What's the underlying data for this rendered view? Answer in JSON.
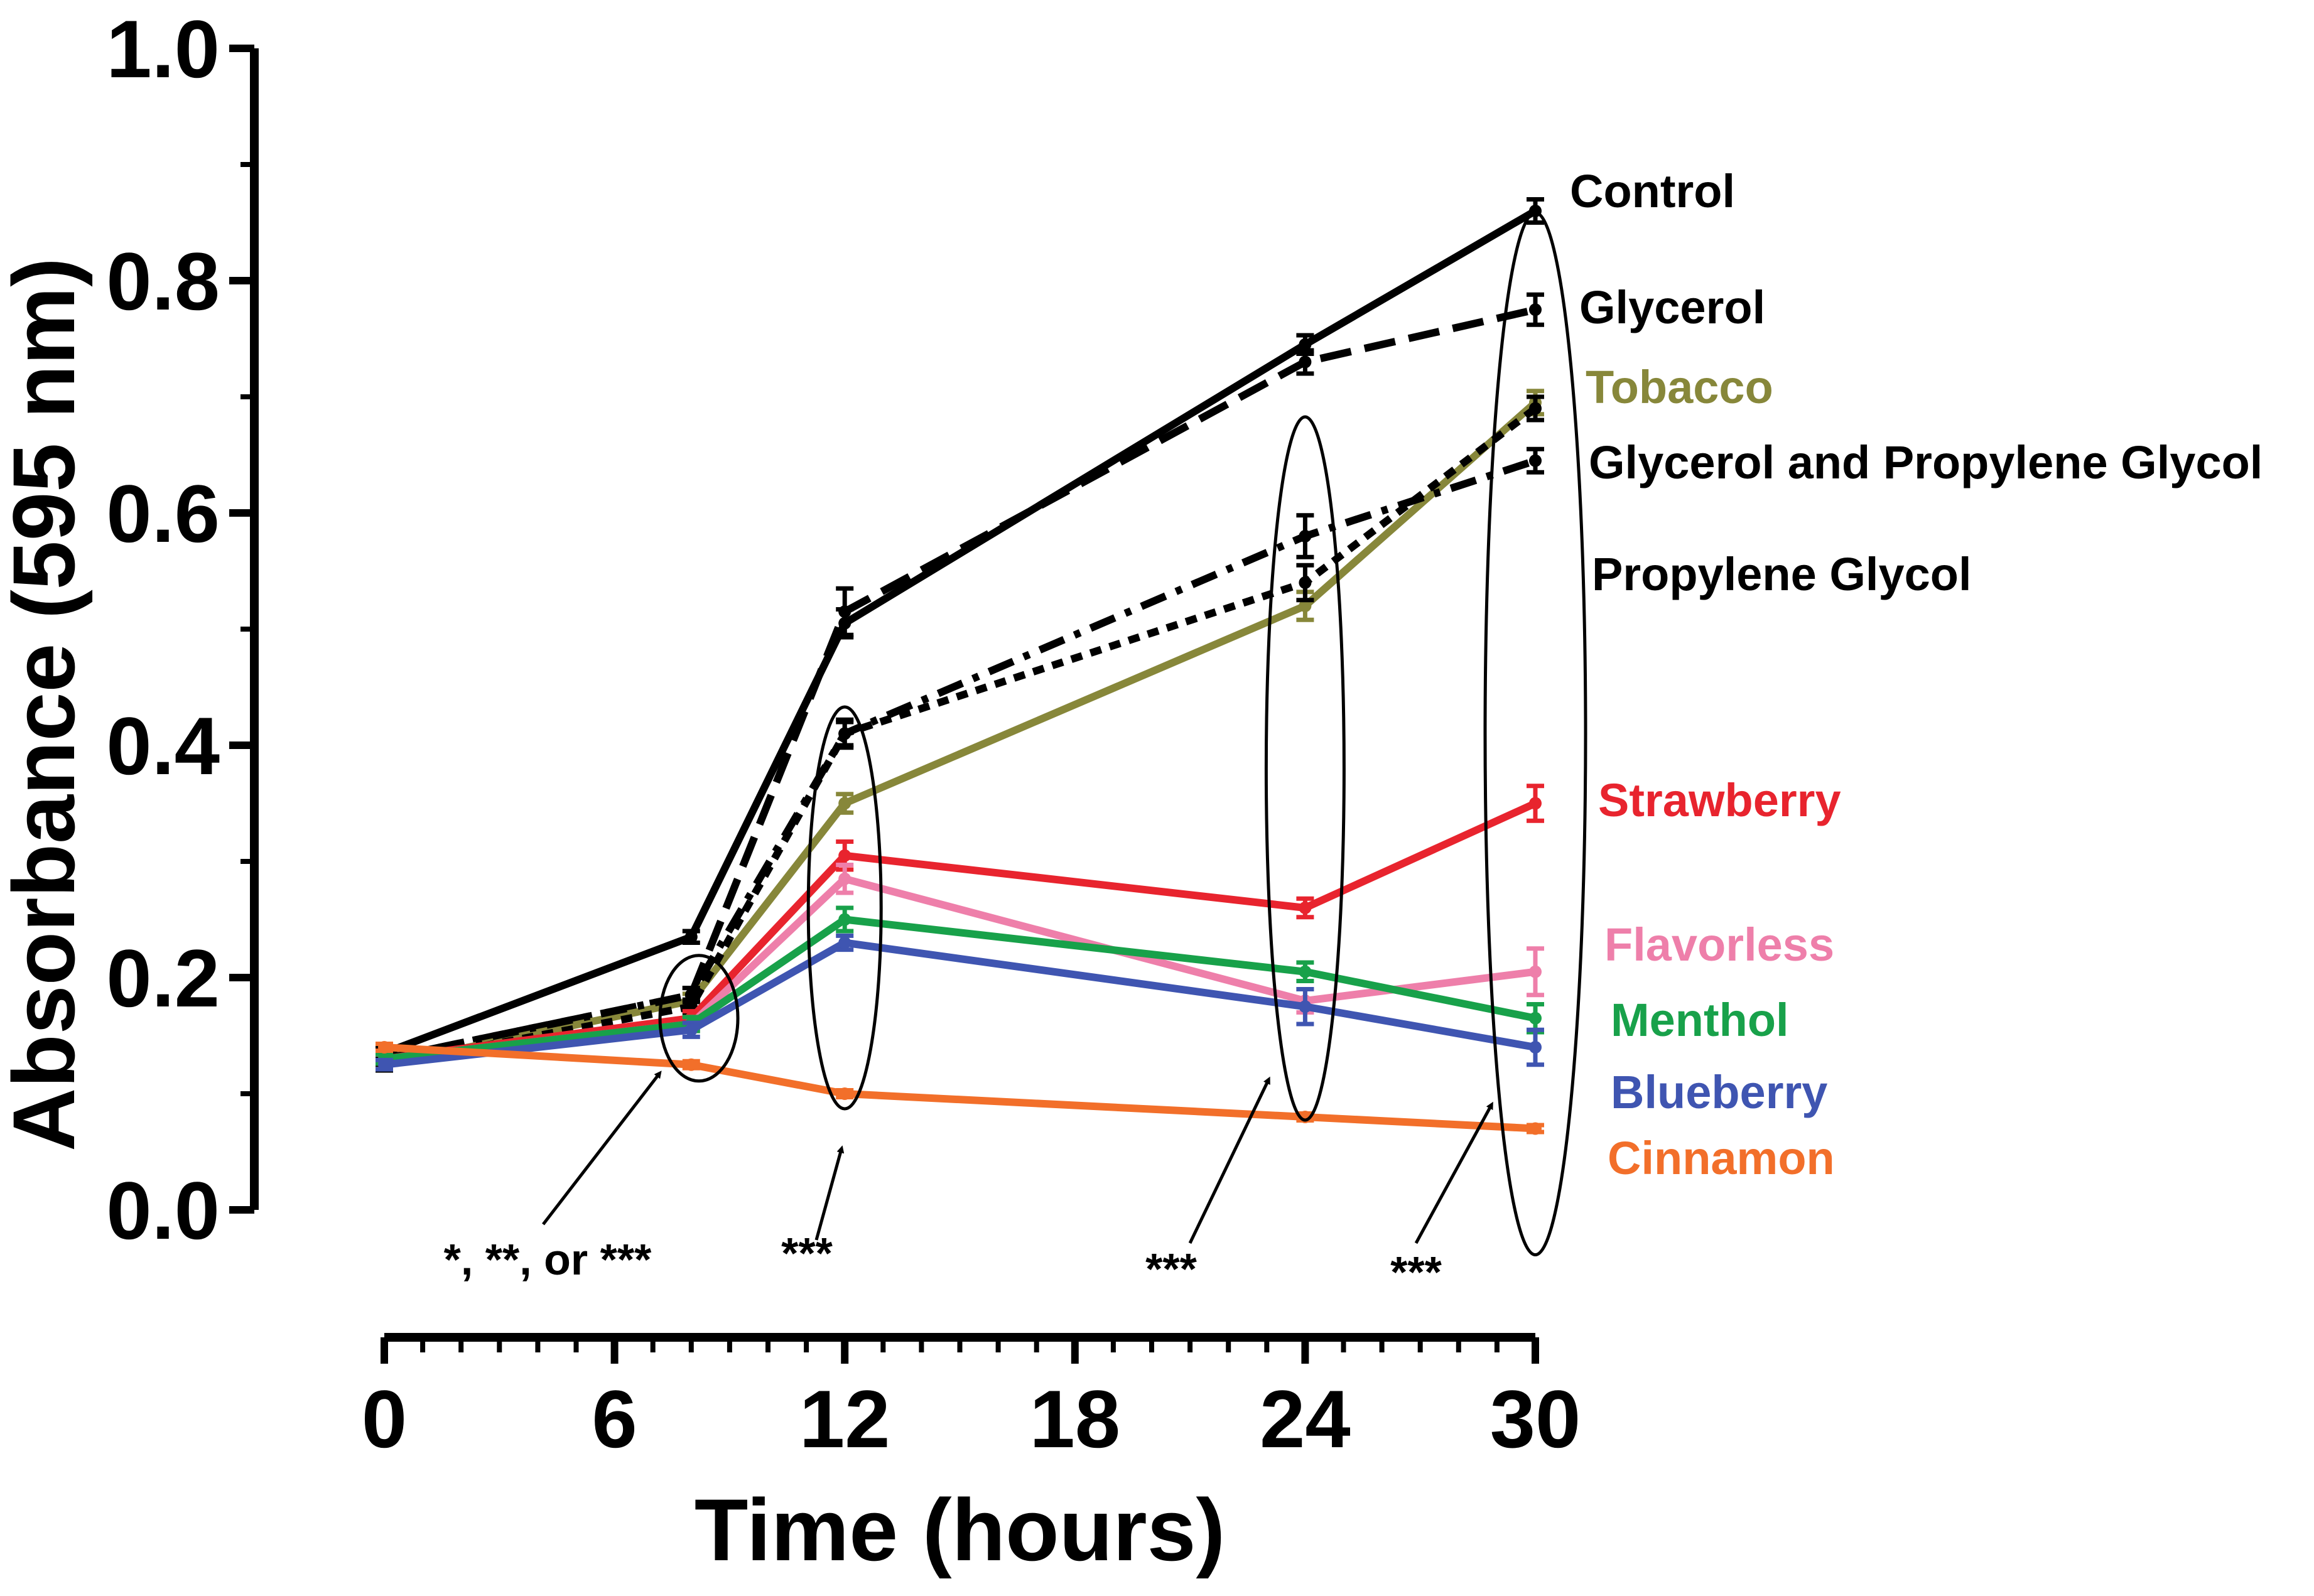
{
  "chart_data": {
    "type": "line",
    "xlabel": "Time (hours)",
    "ylabel": "Absorbance (595 nm)",
    "xlim": [
      0,
      30
    ],
    "ylim": [
      0,
      1.0
    ],
    "x_ticks": [
      "0",
      "6",
      "12",
      "18",
      "24",
      "30"
    ],
    "y_ticks": [
      "0.0",
      "0.2",
      "0.4",
      "0.6",
      "0.8",
      "1.0"
    ],
    "grid": false,
    "legend": "right-side inline labels",
    "x": [
      0,
      8,
      12,
      24,
      30
    ],
    "series": [
      {
        "name": "Control",
        "color": "#000000",
        "style": "solid",
        "values": [
          0.135,
          0.235,
          0.505,
          0.745,
          0.86
        ],
        "err": [
          0.005,
          0.005,
          0.012,
          0.008,
          0.01
        ]
      },
      {
        "name": "Glycerol",
        "color": "#000000",
        "style": "dashed",
        "values": [
          0.13,
          0.185,
          0.515,
          0.73,
          0.775
        ],
        "err": [
          0.005,
          0.006,
          0.02,
          0.01,
          0.013
        ]
      },
      {
        "name": "Tobacco",
        "color": "#87873a",
        "style": "solid",
        "values": [
          0.125,
          0.18,
          0.35,
          0.52,
          0.695
        ],
        "err": [
          0.005,
          0.006,
          0.008,
          0.012,
          0.01
        ]
      },
      {
        "name": "Glycerol and Propylene Glycol",
        "color": "#000000",
        "style": "dashdot",
        "values": [
          0.13,
          0.185,
          0.41,
          0.58,
          0.645
        ],
        "err": [
          0.005,
          0.006,
          0.01,
          0.018,
          0.01
        ]
      },
      {
        "name": "Propylene Glycol",
        "color": "#000000",
        "style": "dotted",
        "values": [
          0.125,
          0.175,
          0.41,
          0.54,
          0.69
        ],
        "err": [
          0.005,
          0.006,
          0.012,
          0.015,
          0.01
        ]
      },
      {
        "name": "Strawberry",
        "color": "#e8242e",
        "style": "solid",
        "values": [
          0.13,
          0.165,
          0.305,
          0.26,
          0.35
        ],
        "err": [
          0.004,
          0.006,
          0.012,
          0.008,
          0.015
        ]
      },
      {
        "name": "Flavorless",
        "color": "#ee7faa",
        "style": "solid",
        "values": [
          0.13,
          0.16,
          0.285,
          0.18,
          0.205
        ],
        "err": [
          0.004,
          0.006,
          0.012,
          0.01,
          0.02
        ]
      },
      {
        "name": "Menthol",
        "color": "#18a14a",
        "style": "solid",
        "values": [
          0.13,
          0.16,
          0.25,
          0.205,
          0.165
        ],
        "err": [
          0.004,
          0.006,
          0.01,
          0.008,
          0.012
        ]
      },
      {
        "name": "Blueberry",
        "color": "#3f55b1",
        "style": "solid",
        "values": [
          0.125,
          0.155,
          0.23,
          0.175,
          0.14
        ],
        "err": [
          0.004,
          0.006,
          0.006,
          0.015,
          0.015
        ]
      },
      {
        "name": "Cinnamon",
        "color": "#f26f2a",
        "style": "solid",
        "values": [
          0.14,
          0.125,
          0.1,
          0.08,
          0.07
        ],
        "err": [
          0.003,
          0.003,
          0.003,
          0.003,
          0.003
        ]
      }
    ],
    "annotations": [
      "*, **, or ***",
      "***",
      "***",
      "***"
    ]
  }
}
